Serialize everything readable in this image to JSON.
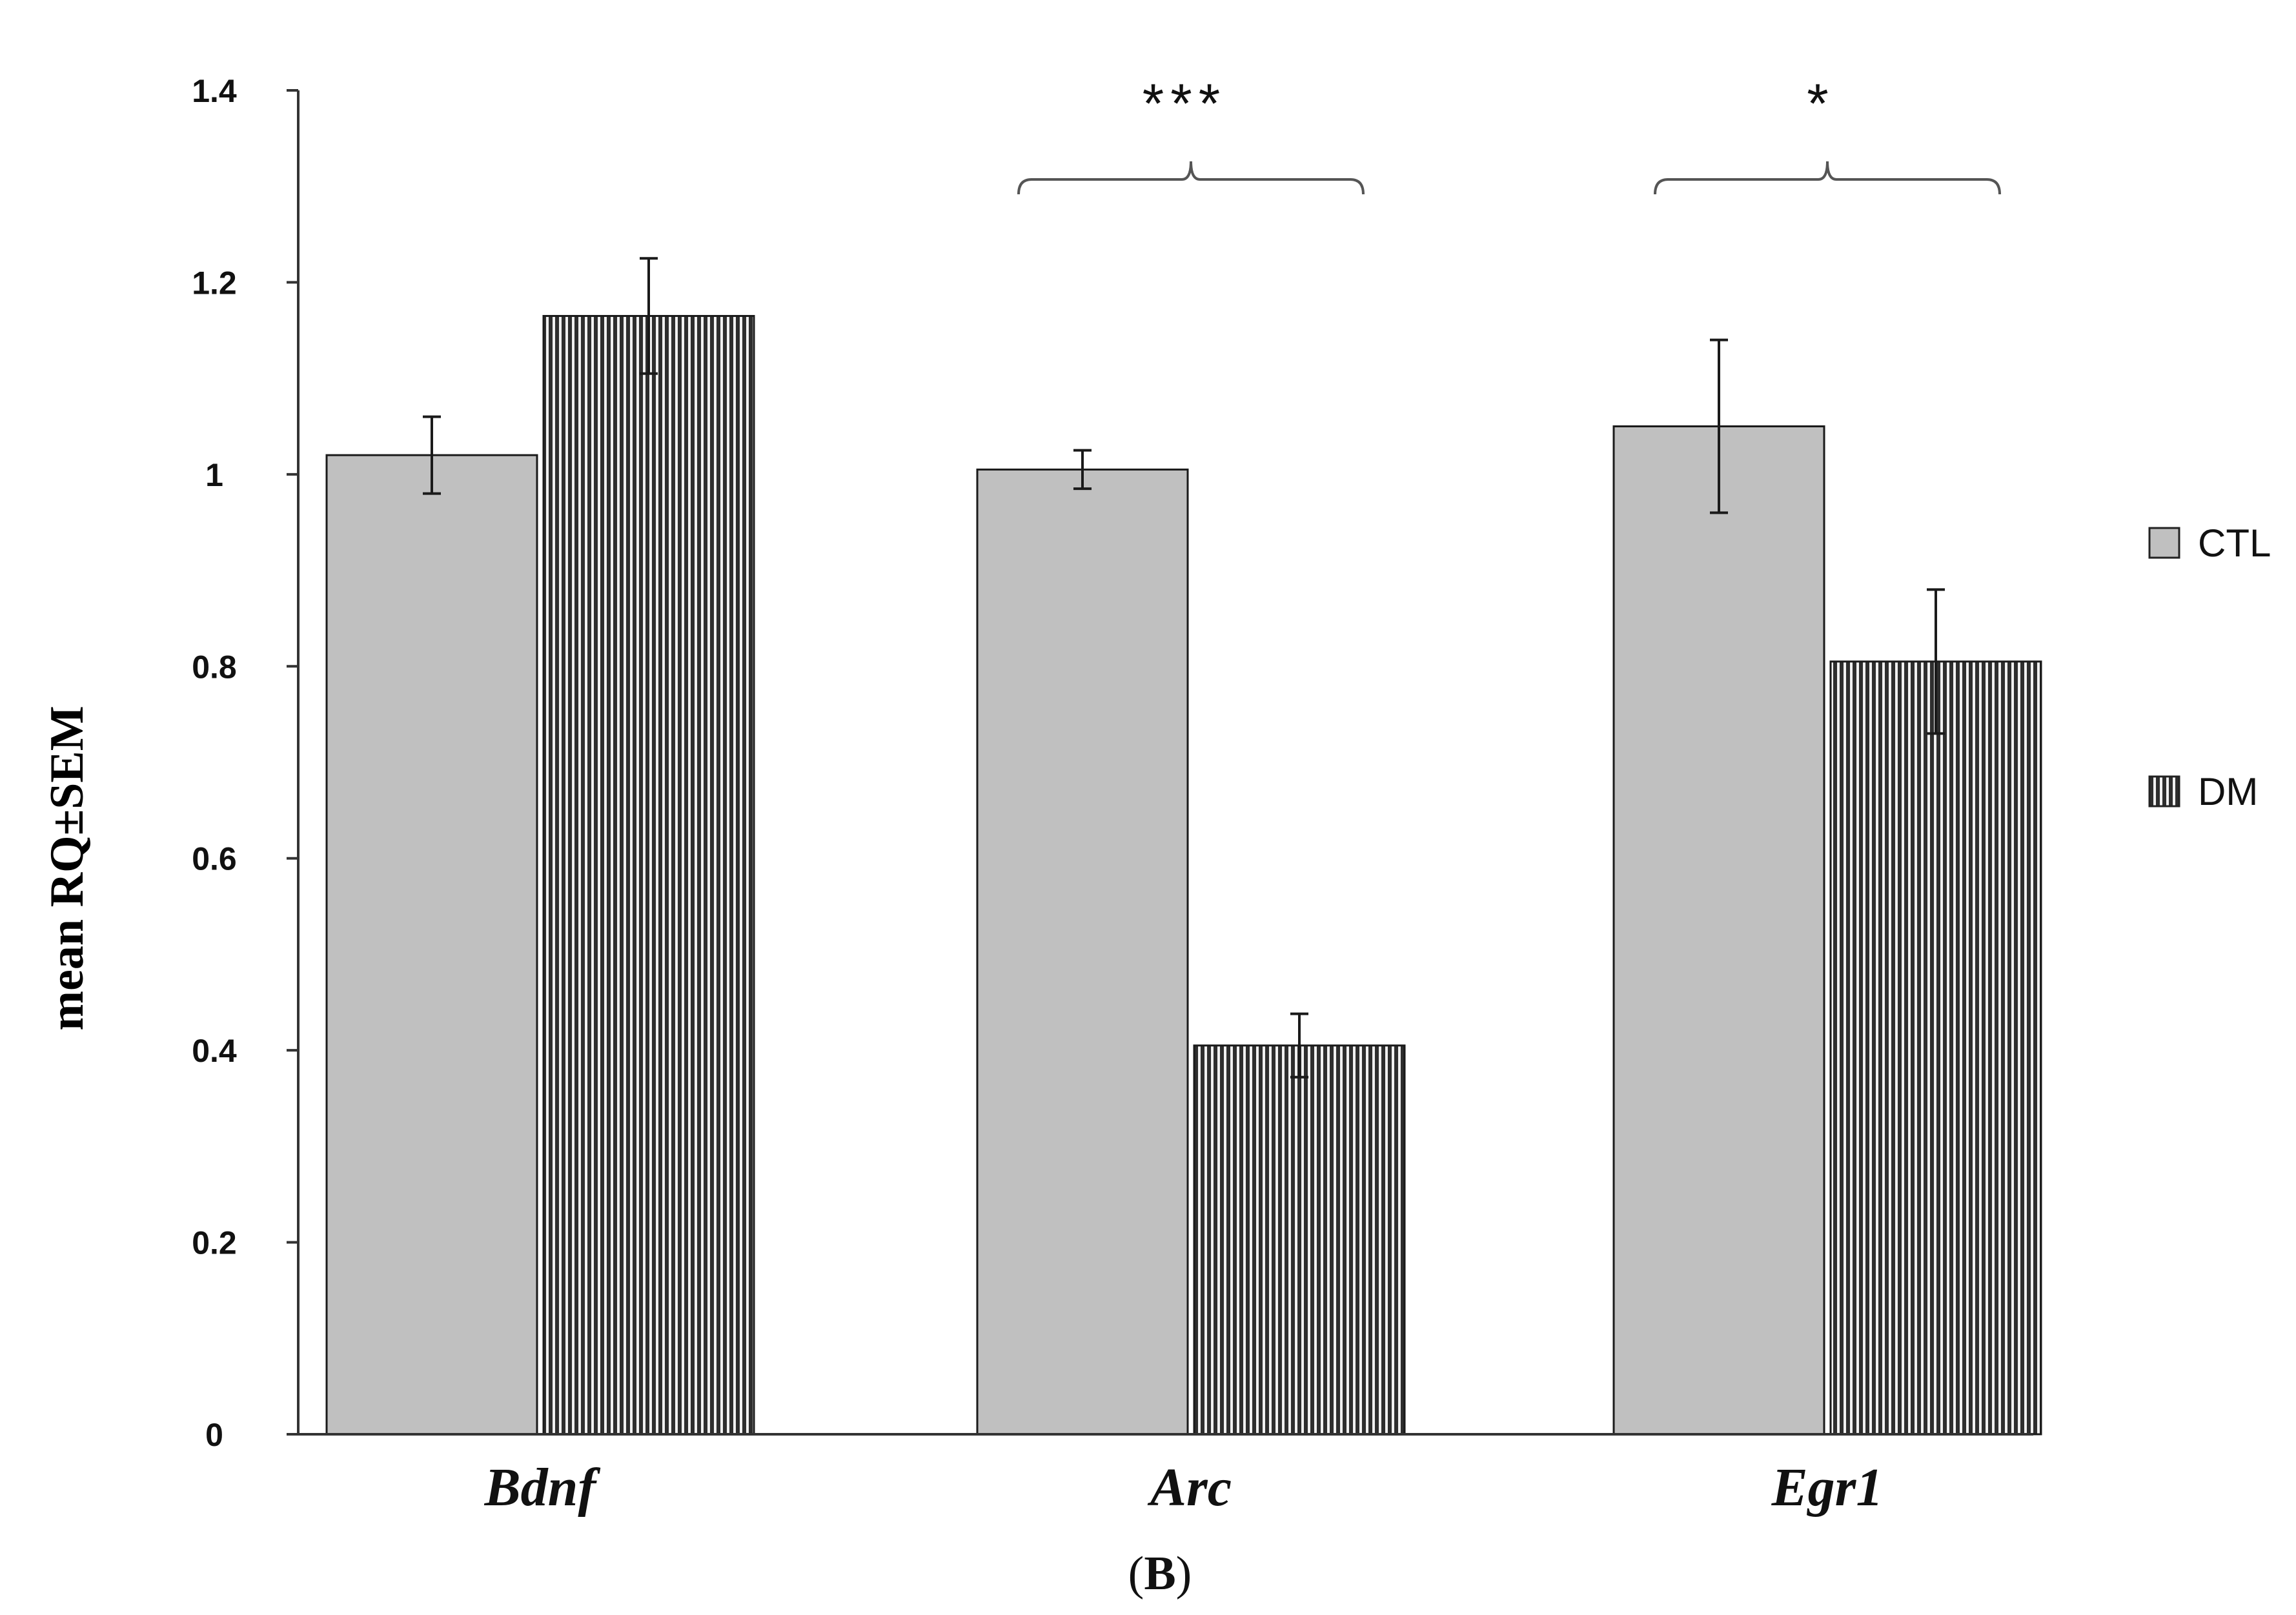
{
  "chart_data": {
    "type": "bar",
    "title": "",
    "panel_label": {
      "open": "(",
      "letter": "B",
      "close": ")"
    },
    "xlabel": "",
    "ylabel": "mean RQ±SEM",
    "ylim": [
      0,
      1.4
    ],
    "yticks": [
      "0",
      "0.2",
      "0.4",
      "0.6",
      "0.8",
      "1",
      "1.2",
      "1.4"
    ],
    "yticks_values": [
      0,
      0.2,
      0.4,
      0.6,
      0.8,
      1.0,
      1.2,
      1.4
    ],
    "categories": [
      "Bdnf",
      "Arc",
      "Egr1"
    ],
    "series": [
      {
        "name": "CTL",
        "values": [
          1.02,
          1.005,
          1.05
        ],
        "errors": [
          0.04,
          0.02,
          0.09
        ],
        "color": "#c0c0c0",
        "pattern": "solid"
      },
      {
        "name": "DM",
        "values": [
          1.165,
          0.405,
          0.805
        ],
        "errors": [
          0.06,
          0.033,
          0.075
        ],
        "color": "#3a3a3a",
        "pattern": "vertical-stripes"
      }
    ],
    "significance": [
      {
        "category": "Arc",
        "label": "***"
      },
      {
        "category": "Egr1",
        "label": "*"
      }
    ],
    "legend": {
      "position": "right",
      "entries": [
        "CTL",
        "DM"
      ]
    },
    "grid": false
  }
}
